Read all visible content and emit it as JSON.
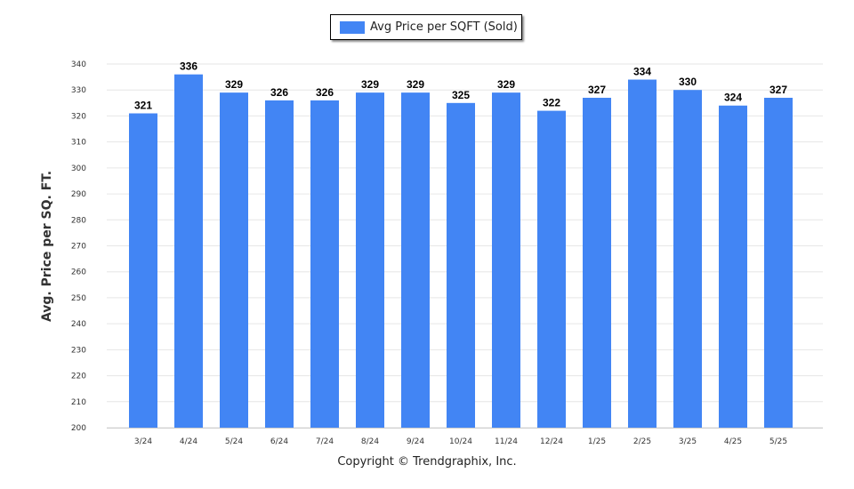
{
  "legend": {
    "label": "Avg Price per SQFT (Sold)"
  },
  "colors": {
    "bar": "#4285f4",
    "grid": "#e6e6e6"
  },
  "copyright": "Copyright © Trendgraphix, Inc.",
  "chart_data": {
    "type": "bar",
    "ylabel": "Avg. Price per SQ. FT.",
    "xlabel": "",
    "ylim": [
      200,
      340
    ],
    "yticks": [
      200,
      210,
      220,
      230,
      240,
      250,
      260,
      270,
      280,
      290,
      300,
      310,
      320,
      330,
      340
    ],
    "categories": [
      "3/24",
      "4/24",
      "5/24",
      "6/24",
      "7/24",
      "8/24",
      "9/24",
      "10/24",
      "11/24",
      "12/24",
      "1/25",
      "2/25",
      "3/25",
      "4/25",
      "5/25"
    ],
    "series": [
      {
        "name": "Avg Price per SQFT (Sold)",
        "values": [
          321,
          336,
          329,
          326,
          326,
          329,
          329,
          325,
          329,
          322,
          327,
          334,
          330,
          324,
          327
        ]
      }
    ],
    "grid": true,
    "legend_position": "top-center"
  }
}
